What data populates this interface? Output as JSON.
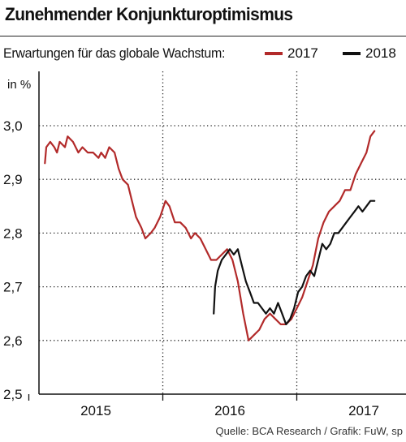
{
  "header": {
    "title": "Zunehmender Konjunkturoptimismus",
    "subtitle": "Erwartungen für das globale Wachstum:",
    "unit": "in %",
    "source": "Quelle: BCA Research / Grafik: FuW, sp"
  },
  "colors": {
    "series_2017": "#b22a2a",
    "series_2018": "#111111",
    "grid": "#222222"
  },
  "chart_data": {
    "type": "line",
    "title": "Zunehmender Konjunkturoptimismus",
    "subtitle": "Erwartungen für das globale Wachstum:",
    "ylabel": "in %",
    "xlabel": "",
    "ylim": [
      2.5,
      3.05
    ],
    "xlim": [
      2014.5,
      2017.12
    ],
    "yticks": [
      2.5,
      2.6,
      2.7,
      2.8,
      2.9,
      3.0
    ],
    "ytick_labels": [
      "2,5",
      "2,6",
      "2,7",
      "2,8",
      "2,9",
      "3,0"
    ],
    "xticks": [
      2015,
      2016,
      2017
    ],
    "xtick_labels": [
      "2015",
      "2016",
      "2017"
    ],
    "grid": "vertical-dotted",
    "legend": "top-right",
    "series": [
      {
        "name": "2017",
        "color": "#b22a2a",
        "points": [
          [
            2014.62,
            2.93
          ],
          [
            2014.63,
            2.96
          ],
          [
            2014.66,
            2.97
          ],
          [
            2014.69,
            2.96
          ],
          [
            2014.71,
            2.95
          ],
          [
            2014.73,
            2.97
          ],
          [
            2014.77,
            2.96
          ],
          [
            2014.79,
            2.98
          ],
          [
            2014.83,
            2.97
          ],
          [
            2014.87,
            2.95
          ],
          [
            2014.9,
            2.96
          ],
          [
            2014.94,
            2.95
          ],
          [
            2014.98,
            2.95
          ],
          [
            2015.02,
            2.94
          ],
          [
            2015.04,
            2.95
          ],
          [
            2015.07,
            2.94
          ],
          [
            2015.1,
            2.96
          ],
          [
            2015.14,
            2.95
          ],
          [
            2015.17,
            2.92
          ],
          [
            2015.2,
            2.9
          ],
          [
            2015.24,
            2.89
          ],
          [
            2015.27,
            2.86
          ],
          [
            2015.3,
            2.83
          ],
          [
            2015.34,
            2.81
          ],
          [
            2015.37,
            2.79
          ],
          [
            2015.41,
            2.8
          ],
          [
            2015.44,
            2.81
          ],
          [
            2015.48,
            2.83
          ],
          [
            2015.52,
            2.86
          ],
          [
            2015.55,
            2.85
          ],
          [
            2015.59,
            2.82
          ],
          [
            2015.63,
            2.82
          ],
          [
            2015.67,
            2.81
          ],
          [
            2015.71,
            2.79
          ],
          [
            2015.74,
            2.8
          ],
          [
            2015.78,
            2.79
          ],
          [
            2015.82,
            2.77
          ],
          [
            2015.86,
            2.75
          ],
          [
            2015.9,
            2.75
          ],
          [
            2015.94,
            2.76
          ],
          [
            2015.98,
            2.77
          ],
          [
            2016.02,
            2.75
          ],
          [
            2016.06,
            2.71
          ],
          [
            2016.1,
            2.65
          ],
          [
            2016.14,
            2.6
          ],
          [
            2016.18,
            2.61
          ],
          [
            2016.22,
            2.62
          ],
          [
            2016.26,
            2.64
          ],
          [
            2016.3,
            2.65
          ],
          [
            2016.34,
            2.64
          ],
          [
            2016.38,
            2.63
          ],
          [
            2016.42,
            2.63
          ],
          [
            2016.46,
            2.64
          ],
          [
            2016.5,
            2.66
          ],
          [
            2016.54,
            2.68
          ],
          [
            2016.58,
            2.71
          ],
          [
            2016.62,
            2.74
          ],
          [
            2016.66,
            2.79
          ],
          [
            2016.7,
            2.82
          ],
          [
            2016.74,
            2.84
          ],
          [
            2016.78,
            2.85
          ],
          [
            2016.82,
            2.86
          ],
          [
            2016.86,
            2.88
          ],
          [
            2016.9,
            2.88
          ],
          [
            2016.94,
            2.91
          ],
          [
            2016.98,
            2.93
          ],
          [
            2017.02,
            2.95
          ],
          [
            2017.05,
            2.98
          ],
          [
            2017.08,
            2.99
          ]
        ]
      },
      {
        "name": "2018",
        "color": "#111111",
        "points": [
          [
            2015.88,
            2.65
          ],
          [
            2015.89,
            2.7
          ],
          [
            2015.91,
            2.73
          ],
          [
            2015.94,
            2.75
          ],
          [
            2015.97,
            2.76
          ],
          [
            2016.0,
            2.77
          ],
          [
            2016.03,
            2.76
          ],
          [
            2016.06,
            2.77
          ],
          [
            2016.09,
            2.74
          ],
          [
            2016.12,
            2.71
          ],
          [
            2016.15,
            2.69
          ],
          [
            2016.18,
            2.67
          ],
          [
            2016.21,
            2.67
          ],
          [
            2016.24,
            2.66
          ],
          [
            2016.27,
            2.65
          ],
          [
            2016.3,
            2.66
          ],
          [
            2016.33,
            2.65
          ],
          [
            2016.36,
            2.67
          ],
          [
            2016.39,
            2.65
          ],
          [
            2016.42,
            2.63
          ],
          [
            2016.45,
            2.64
          ],
          [
            2016.48,
            2.66
          ],
          [
            2016.51,
            2.69
          ],
          [
            2016.54,
            2.7
          ],
          [
            2016.57,
            2.72
          ],
          [
            2016.6,
            2.73
          ],
          [
            2016.63,
            2.72
          ],
          [
            2016.66,
            2.75
          ],
          [
            2016.69,
            2.78
          ],
          [
            2016.72,
            2.77
          ],
          [
            2016.75,
            2.78
          ],
          [
            2016.78,
            2.8
          ],
          [
            2016.81,
            2.8
          ],
          [
            2016.84,
            2.81
          ],
          [
            2016.87,
            2.82
          ],
          [
            2016.9,
            2.83
          ],
          [
            2016.93,
            2.84
          ],
          [
            2016.96,
            2.85
          ],
          [
            2016.99,
            2.84
          ],
          [
            2017.02,
            2.85
          ],
          [
            2017.05,
            2.86
          ],
          [
            2017.08,
            2.86
          ]
        ]
      }
    ]
  }
}
